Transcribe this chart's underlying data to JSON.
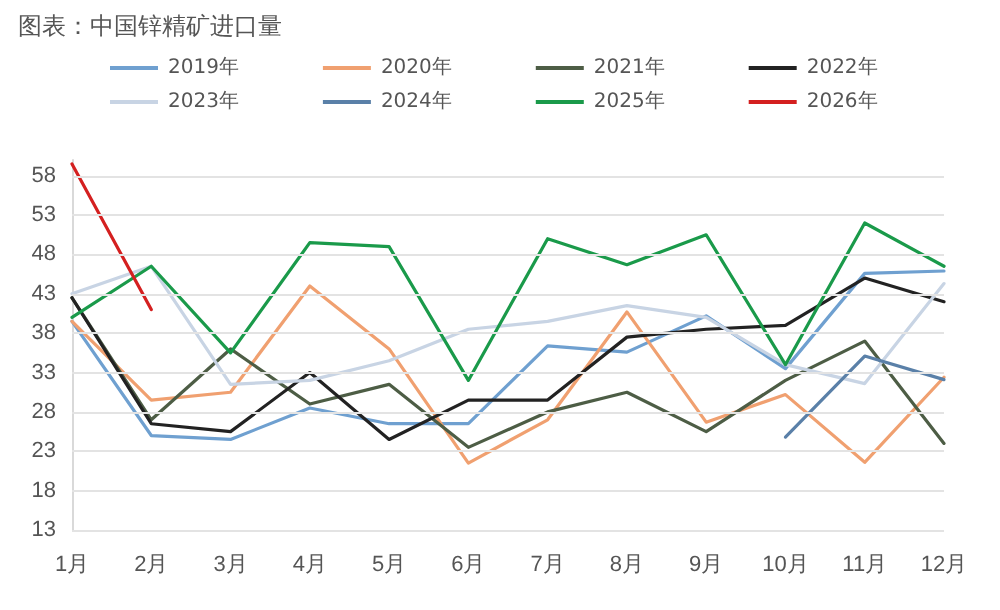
{
  "chart_data": {
    "type": "line",
    "title": "图表：中国锌精矿进口量",
    "categories": [
      "1月",
      "2月",
      "3月",
      "4月",
      "5月",
      "6月",
      "7月",
      "8月",
      "9月",
      "10月",
      "11月",
      "12月"
    ],
    "series": [
      {
        "name": "2019年",
        "color": "#6fa0d0",
        "values": [
          39.5,
          25,
          24.5,
          28.5,
          26.5,
          26.5,
          36.4,
          35.6,
          40.2,
          33.5,
          45.6,
          45.9
        ]
      },
      {
        "name": "2020年",
        "color": "#f0a070",
        "values": [
          39.5,
          29.5,
          30.5,
          44,
          36,
          21.5,
          27,
          40.7,
          26.7,
          30.2,
          21.6,
          32.4
        ]
      },
      {
        "name": "2021年",
        "color": "#4d5d45",
        "values": [
          42.5,
          27,
          36,
          29,
          31.5,
          23.5,
          28,
          30.5,
          25.5,
          32,
          37,
          24
        ]
      },
      {
        "name": "2022年",
        "color": "#222222",
        "values": [
          42.5,
          26.5,
          25.5,
          33,
          24.5,
          29.5,
          29.5,
          37.5,
          38.5,
          39,
          45,
          42
        ]
      },
      {
        "name": "2023年",
        "color": "#c8d4e4",
        "values": [
          43,
          46.5,
          31.5,
          32,
          34.5,
          38.5,
          39.5,
          41.5,
          40,
          34,
          31.6,
          44.3
        ]
      },
      {
        "name": "2024年",
        "color": "#5a80a8",
        "values": [
          null,
          null,
          null,
          null,
          null,
          null,
          null,
          null,
          null,
          24.8,
          35.1,
          32.1
        ]
      },
      {
        "name": "2025年",
        "color": "#1a9a4a",
        "values": [
          40,
          46.5,
          35.5,
          49.5,
          49,
          32,
          50,
          46.7,
          50.5,
          34,
          52,
          46.5
        ]
      },
      {
        "name": "2026年",
        "color": "#d42020",
        "values": [
          59.5,
          41,
          null,
          null,
          null,
          null,
          null,
          null,
          null,
          null,
          null,
          null
        ]
      }
    ],
    "ylim": [
      13,
      60
    ],
    "yticks": [
      13,
      18,
      23,
      28,
      33,
      38,
      43,
      48,
      53,
      58
    ],
    "grid": "y",
    "legend": "top",
    "marker": "none",
    "line_style": "solid"
  }
}
